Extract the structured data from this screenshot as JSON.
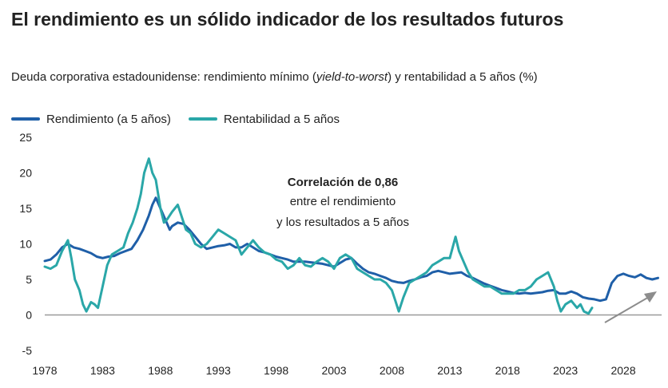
{
  "title": "El rendimiento es un sólido indicador de los resultados futuros",
  "subtitle": {
    "pre": "Deuda corporativa estadounidense: rendimiento mínimo (",
    "italic": "yield-to-worst",
    "post": ") y rentabilidad a 5 años (%)"
  },
  "legend": [
    {
      "label": "Rendimiento (a 5 años)",
      "color": "#1f5fa8"
    },
    {
      "label": "Rentabilidad a 5 años",
      "color": "#2aa7a8"
    }
  ],
  "annotation": {
    "bold": "Correlación de 0,86",
    "line2": "entre el rendimiento",
    "line3": "y los resultados a 5 años"
  },
  "chart_data": {
    "type": "line",
    "xlim": [
      1978,
      2032
    ],
    "ylim": [
      -5,
      25
    ],
    "xticks": [
      "1978",
      "1983",
      "1988",
      "1993",
      "1998",
      "2003",
      "2008",
      "2013",
      "2018",
      "2023",
      "2028"
    ],
    "yticks": [
      "25",
      "20",
      "15",
      "10",
      "5",
      "0",
      "-5"
    ],
    "series": [
      {
        "name": "Rendimiento (a 5 años)",
        "color": "#1f5fa8",
        "points": [
          [
            1978,
            7.6
          ],
          [
            1978.5,
            7.8
          ],
          [
            1979,
            8.5
          ],
          [
            1979.5,
            9.5
          ],
          [
            1980,
            10.0
          ],
          [
            1980.5,
            9.5
          ],
          [
            1981,
            9.3
          ],
          [
            1981.5,
            9.0
          ],
          [
            1982,
            8.7
          ],
          [
            1982.5,
            8.2
          ],
          [
            1983,
            8.0
          ],
          [
            1983.5,
            8.2
          ],
          [
            1984,
            8.3
          ],
          [
            1984.5,
            8.7
          ],
          [
            1985,
            9.0
          ],
          [
            1985.5,
            9.3
          ],
          [
            1986,
            10.5
          ],
          [
            1986.5,
            12.0
          ],
          [
            1987,
            14.0
          ],
          [
            1987.3,
            15.5
          ],
          [
            1987.6,
            16.5
          ],
          [
            1988,
            15.0
          ],
          [
            1988.4,
            13.5
          ],
          [
            1988.8,
            12.0
          ],
          [
            1989,
            12.5
          ],
          [
            1989.5,
            13.0
          ],
          [
            1990,
            12.8
          ],
          [
            1990.5,
            12.0
          ],
          [
            1991,
            11.0
          ],
          [
            1991.5,
            10.0
          ],
          [
            1992,
            9.3
          ],
          [
            1992.5,
            9.5
          ],
          [
            1993,
            9.7
          ],
          [
            1993.5,
            9.8
          ],
          [
            1994,
            10.0
          ],
          [
            1994.5,
            9.5
          ],
          [
            1995,
            9.5
          ],
          [
            1995.5,
            10.0
          ],
          [
            1996,
            9.5
          ],
          [
            1996.5,
            9.0
          ],
          [
            1997,
            8.8
          ],
          [
            1997.5,
            8.5
          ],
          [
            1998,
            8.2
          ],
          [
            1998.5,
            8.0
          ],
          [
            1999,
            7.8
          ],
          [
            1999.5,
            7.5
          ],
          [
            2000,
            7.5
          ],
          [
            2000.5,
            7.5
          ],
          [
            2001,
            7.4
          ],
          [
            2001.5,
            7.3
          ],
          [
            2002,
            7.2
          ],
          [
            2002.5,
            7.0
          ],
          [
            2003,
            6.8
          ],
          [
            2003.5,
            7.3
          ],
          [
            2004,
            7.8
          ],
          [
            2004.5,
            8.0
          ],
          [
            2005,
            7.2
          ],
          [
            2005.5,
            6.5
          ],
          [
            2006,
            6.0
          ],
          [
            2006.5,
            5.8
          ],
          [
            2007,
            5.5
          ],
          [
            2007.5,
            5.2
          ],
          [
            2008,
            4.8
          ],
          [
            2008.5,
            4.6
          ],
          [
            2009,
            4.5
          ],
          [
            2009.5,
            4.8
          ],
          [
            2010,
            5.0
          ],
          [
            2010.5,
            5.3
          ],
          [
            2011,
            5.5
          ],
          [
            2011.5,
            6.0
          ],
          [
            2012,
            6.2
          ],
          [
            2012.5,
            6.0
          ],
          [
            2013,
            5.8
          ],
          [
            2013.5,
            5.9
          ],
          [
            2014,
            6.0
          ],
          [
            2014.5,
            5.5
          ],
          [
            2015,
            5.2
          ],
          [
            2015.5,
            4.8
          ],
          [
            2016,
            4.4
          ],
          [
            2016.5,
            4.1
          ],
          [
            2017,
            3.8
          ],
          [
            2017.5,
            3.5
          ],
          [
            2018,
            3.3
          ],
          [
            2018.5,
            3.1
          ],
          [
            2019,
            3.0
          ],
          [
            2019.5,
            3.1
          ],
          [
            2020,
            3.0
          ],
          [
            2020.5,
            3.1
          ],
          [
            2021,
            3.2
          ],
          [
            2021.5,
            3.4
          ],
          [
            2022,
            3.5
          ],
          [
            2022.5,
            3.0
          ],
          [
            2023,
            3.0
          ],
          [
            2023.5,
            3.3
          ],
          [
            2024,
            3.0
          ],
          [
            2024.5,
            2.5
          ],
          [
            2025,
            2.3
          ],
          [
            2025.5,
            2.2
          ],
          [
            2026,
            2.0
          ],
          [
            2026.5,
            2.2
          ],
          [
            2027,
            4.5
          ],
          [
            2027.5,
            5.5
          ],
          [
            2028,
            5.8
          ],
          [
            2028.5,
            5.5
          ],
          [
            2029,
            5.3
          ],
          [
            2029.5,
            5.7
          ],
          [
            2030,
            5.2
          ],
          [
            2030.5,
            5.0
          ],
          [
            2031,
            5.2
          ]
        ]
      },
      {
        "name": "Rentabilidad a 5 años",
        "color": "#2aa7a8",
        "points": [
          [
            1978,
            6.8
          ],
          [
            1978.5,
            6.5
          ],
          [
            1979,
            7.0
          ],
          [
            1979.5,
            9.0
          ],
          [
            1980,
            10.5
          ],
          [
            1980.3,
            8.0
          ],
          [
            1980.6,
            5.0
          ],
          [
            1981,
            3.5
          ],
          [
            1981.3,
            1.5
          ],
          [
            1981.6,
            0.5
          ],
          [
            1982,
            1.8
          ],
          [
            1982.3,
            1.5
          ],
          [
            1982.6,
            1.0
          ],
          [
            1983,
            4.0
          ],
          [
            1983.4,
            7.0
          ],
          [
            1983.8,
            8.5
          ],
          [
            1984.3,
            9.0
          ],
          [
            1984.8,
            9.5
          ],
          [
            1985.2,
            11.5
          ],
          [
            1985.6,
            13.0
          ],
          [
            1986,
            15.0
          ],
          [
            1986.3,
            17.0
          ],
          [
            1986.6,
            20.0
          ],
          [
            1987,
            22.0
          ],
          [
            1987.3,
            20.0
          ],
          [
            1987.6,
            19.0
          ],
          [
            1988,
            15.0
          ],
          [
            1988.3,
            13.0
          ],
          [
            1988.6,
            13.5
          ],
          [
            1989,
            14.5
          ],
          [
            1989.5,
            15.5
          ],
          [
            1989.8,
            14.0
          ],
          [
            1990.2,
            12.0
          ],
          [
            1990.6,
            11.5
          ],
          [
            1991,
            10.0
          ],
          [
            1991.5,
            9.5
          ],
          [
            1992,
            10.0
          ],
          [
            1992.5,
            11.0
          ],
          [
            1993,
            12.0
          ],
          [
            1993.5,
            11.5
          ],
          [
            1994,
            11.0
          ],
          [
            1994.5,
            10.5
          ],
          [
            1995,
            8.5
          ],
          [
            1995.5,
            9.5
          ],
          [
            1996,
            10.5
          ],
          [
            1996.5,
            9.5
          ],
          [
            1997,
            8.8
          ],
          [
            1997.5,
            8.5
          ],
          [
            1998,
            7.8
          ],
          [
            1998.5,
            7.5
          ],
          [
            1999,
            6.5
          ],
          [
            1999.5,
            7.0
          ],
          [
            2000,
            8.0
          ],
          [
            2000.5,
            7.0
          ],
          [
            2001,
            6.8
          ],
          [
            2001.5,
            7.5
          ],
          [
            2002,
            8.0
          ],
          [
            2002.5,
            7.5
          ],
          [
            2003,
            6.5
          ],
          [
            2003.5,
            8.0
          ],
          [
            2004,
            8.5
          ],
          [
            2004.5,
            8.0
          ],
          [
            2005,
            6.5
          ],
          [
            2005.5,
            6.0
          ],
          [
            2006,
            5.5
          ],
          [
            2006.5,
            5.0
          ],
          [
            2007,
            5.0
          ],
          [
            2007.5,
            4.5
          ],
          [
            2008,
            3.5
          ],
          [
            2008.3,
            2.0
          ],
          [
            2008.6,
            0.5
          ],
          [
            2009,
            2.5
          ],
          [
            2009.5,
            4.5
          ],
          [
            2010,
            5.0
          ],
          [
            2010.5,
            5.5
          ],
          [
            2011,
            6.0
          ],
          [
            2011.5,
            7.0
          ],
          [
            2012,
            7.5
          ],
          [
            2012.5,
            8.0
          ],
          [
            2013,
            8.0
          ],
          [
            2013.5,
            11.0
          ],
          [
            2013.8,
            9.0
          ],
          [
            2014.2,
            7.5
          ],
          [
            2014.6,
            6.0
          ],
          [
            2015,
            5.0
          ],
          [
            2015.5,
            4.5
          ],
          [
            2016,
            4.0
          ],
          [
            2016.5,
            4.0
          ],
          [
            2017,
            3.5
          ],
          [
            2017.5,
            3.0
          ],
          [
            2018,
            3.0
          ],
          [
            2018.5,
            3.0
          ],
          [
            2019,
            3.5
          ],
          [
            2019.5,
            3.5
          ],
          [
            2020,
            4.0
          ],
          [
            2020.5,
            5.0
          ],
          [
            2021,
            5.5
          ],
          [
            2021.5,
            6.0
          ],
          [
            2022,
            4.0
          ],
          [
            2022.3,
            2.0
          ],
          [
            2022.6,
            0.5
          ],
          [
            2023,
            1.5
          ],
          [
            2023.5,
            2.0
          ],
          [
            2024,
            1.0
          ],
          [
            2024.3,
            1.5
          ],
          [
            2024.6,
            0.5
          ],
          [
            2025,
            0.2
          ],
          [
            2025.3,
            1.0
          ]
        ]
      }
    ]
  }
}
